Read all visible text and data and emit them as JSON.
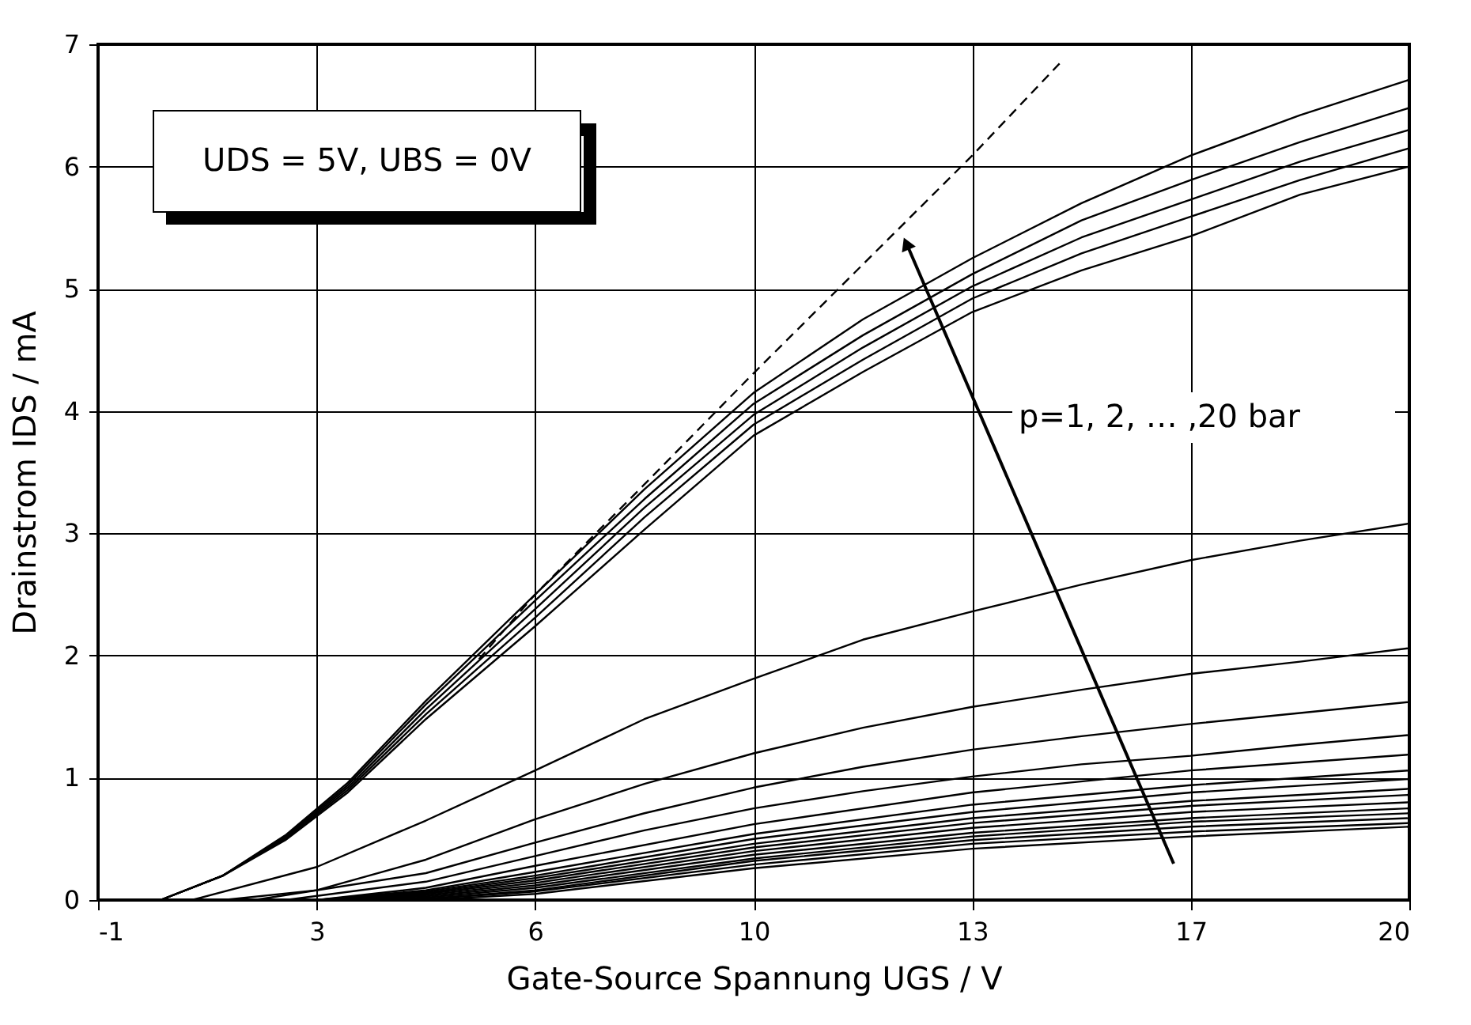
{
  "chart_data": {
    "type": "line",
    "xlabel": "Gate-Source Spannung UGS / V",
    "ylabel": "Drainstrom IDS / mA",
    "annotations": [
      "UDS = 5V, UBS = 0V",
      "p=1, 2, … ,20 bar"
    ],
    "xlim": [
      -1,
      20
    ],
    "ylim": [
      0,
      7
    ],
    "xticks": [
      -1,
      {
        "value": 2.5,
        "label": "3"
      },
      6,
      {
        "value": 9.5,
        "label": "10"
      },
      13,
      {
        "value": 16.5,
        "label": "17"
      },
      20
    ],
    "yticks": [
      0,
      1,
      2,
      3,
      4,
      5,
      6,
      7
    ],
    "grid": true,
    "legend": false,
    "line_style": "solid",
    "series": [
      {
        "color": "#000000",
        "line_style": "dashed",
        "x": [
          5.1,
          6,
          7.75,
          9.5,
          11.25,
          13,
          14.43
        ],
        "values": [
          1.97,
          2.5,
          3.4,
          4.31,
          5.2,
          6.09,
          6.86
        ]
      },
      {
        "color": "#000000",
        "x": [
          0,
          1,
          2,
          3,
          4.25,
          6,
          7.75,
          9.5,
          11.25,
          13,
          14.75,
          16.5,
          18.25,
          20
        ],
        "values": [
          0,
          0.2,
          0.53,
          0.96,
          1.63,
          2.5,
          3.36,
          4.15,
          4.75,
          5.25,
          5.7,
          6.09,
          6.42,
          6.71
        ]
      },
      {
        "color": "#000000",
        "x": [
          0,
          1,
          2,
          3,
          4.25,
          6,
          7.75,
          9.5,
          11.25,
          13,
          14.75,
          16.5,
          18.25,
          20
        ],
        "values": [
          0,
          0.2,
          0.52,
          0.94,
          1.6,
          2.45,
          3.28,
          4.06,
          4.62,
          5.12,
          5.56,
          5.89,
          6.2,
          6.48
        ]
      },
      {
        "color": "#000000",
        "x": [
          0,
          1,
          2,
          3,
          4.25,
          6,
          7.75,
          9.5,
          11.25,
          13,
          14.75,
          16.5,
          18.25,
          20
        ],
        "values": [
          0,
          0.2,
          0.51,
          0.92,
          1.56,
          2.38,
          3.21,
          3.97,
          4.52,
          5.02,
          5.42,
          5.73,
          6.04,
          6.3
        ]
      },
      {
        "color": "#000000",
        "x": [
          0,
          1,
          2,
          3,
          4.25,
          6,
          7.75,
          9.5,
          11.25,
          13,
          14.75,
          16.5,
          18.25,
          20
        ],
        "values": [
          0,
          0.2,
          0.5,
          0.9,
          1.52,
          2.31,
          3.13,
          3.89,
          4.42,
          4.92,
          5.29,
          5.59,
          5.89,
          6.15
        ]
      },
      {
        "color": "#000000",
        "x": [
          0,
          1,
          2,
          3,
          4.25,
          6,
          7.75,
          9.5,
          11.25,
          13,
          14.75,
          16.5,
          18.25,
          20
        ],
        "values": [
          0,
          0.2,
          0.49,
          0.88,
          1.48,
          2.24,
          3.03,
          3.8,
          4.32,
          4.81,
          5.15,
          5.43,
          5.77,
          6.0
        ]
      },
      {
        "color": "#000000",
        "x": [
          0.5,
          2.5,
          4.25,
          6,
          7.75,
          9.5,
          11.25,
          13,
          14.75,
          16.5,
          18.25,
          20
        ],
        "values": [
          0,
          0.27,
          0.65,
          1.06,
          1.48,
          1.81,
          2.13,
          2.36,
          2.58,
          2.78,
          2.94,
          3.08
        ]
      },
      {
        "color": "#000000",
        "x": [
          1,
          2.5,
          4.25,
          6,
          7.75,
          9.5,
          11.25,
          13,
          14.75,
          16.5,
          18.25,
          20
        ],
        "values": [
          0,
          0.08,
          0.33,
          0.66,
          0.95,
          1.2,
          1.41,
          1.58,
          1.72,
          1.85,
          1.95,
          2.06
        ]
      },
      {
        "color": "#000000",
        "x": [
          1.5,
          4.25,
          6,
          7.75,
          9.5,
          11.25,
          13,
          14.75,
          16.5,
          18.25,
          20
        ],
        "values": [
          0,
          0.22,
          0.47,
          0.71,
          0.92,
          1.09,
          1.23,
          1.34,
          1.44,
          1.53,
          1.62
        ]
      },
      {
        "color": "#000000",
        "x": [
          2,
          4.25,
          6,
          7.75,
          9.5,
          11.25,
          13,
          14.75,
          16.5,
          18.25,
          20
        ],
        "values": [
          0,
          0.15,
          0.36,
          0.57,
          0.75,
          0.89,
          1.01,
          1.11,
          1.18,
          1.27,
          1.35
        ]
      },
      {
        "color": "#000000",
        "x": [
          2.5,
          4.25,
          6,
          9.5,
          13,
          16.5,
          20
        ],
        "values": [
          0,
          0.1,
          0.28,
          0.62,
          0.88,
          1.06,
          1.19
        ]
      },
      {
        "color": "#000000",
        "x": [
          2.5,
          4.25,
          6,
          9.5,
          13,
          16.5,
          20
        ],
        "values": [
          0,
          0.08,
          0.23,
          0.54,
          0.78,
          0.94,
          1.06
        ]
      },
      {
        "color": "#000000",
        "x": [
          2.5,
          4.25,
          6,
          9.5,
          13,
          16.5,
          20
        ],
        "values": [
          0,
          0.07,
          0.2,
          0.5,
          0.72,
          0.88,
          0.99
        ]
      },
      {
        "color": "#000000",
        "x": [
          2.5,
          4.25,
          6,
          9.5,
          13,
          16.5,
          20
        ],
        "values": [
          0,
          0.06,
          0.18,
          0.46,
          0.67,
          0.81,
          0.91
        ]
      },
      {
        "color": "#000000",
        "x": [
          2.5,
          4.25,
          6,
          9.5,
          13,
          16.5,
          20
        ],
        "values": [
          0,
          0.05,
          0.16,
          0.43,
          0.63,
          0.77,
          0.86
        ]
      },
      {
        "color": "#000000",
        "x": [
          2.5,
          4.25,
          6,
          9.5,
          13,
          16.5,
          20
        ],
        "values": [
          0,
          0.04,
          0.14,
          0.4,
          0.59,
          0.72,
          0.8
        ]
      },
      {
        "color": "#000000",
        "x": [
          2.5,
          4.25,
          6,
          9.5,
          13,
          16.5,
          20
        ],
        "values": [
          0,
          0.03,
          0.12,
          0.37,
          0.55,
          0.67,
          0.75
        ]
      },
      {
        "color": "#000000",
        "x": [
          2.5,
          4.25,
          6,
          9.5,
          13,
          16.5,
          20
        ],
        "values": [
          0,
          0.02,
          0.1,
          0.34,
          0.52,
          0.64,
          0.71
        ]
      },
      {
        "color": "#000000",
        "x": [
          2.5,
          4.25,
          6,
          9.5,
          13,
          16.5,
          20
        ],
        "values": [
          0,
          0.01,
          0.08,
          0.32,
          0.49,
          0.6,
          0.67
        ]
      },
      {
        "color": "#000000",
        "x": [
          2.5,
          4.25,
          6,
          9.5,
          13,
          16.5,
          20
        ],
        "values": [
          0,
          0.01,
          0.07,
          0.29,
          0.46,
          0.56,
          0.63
        ]
      },
      {
        "color": "#000000",
        "x": [
          3,
          4.25,
          6,
          9.5,
          13,
          16.5,
          20
        ],
        "values": [
          0,
          0.0,
          0.05,
          0.26,
          0.42,
          0.52,
          0.6
        ]
      }
    ]
  }
}
